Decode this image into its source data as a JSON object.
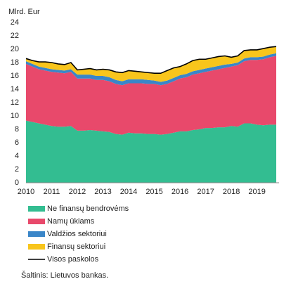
{
  "chart_data": {
    "type": "area",
    "stacked": true,
    "y_label": "Mlrd. Eur",
    "source": "Šaltinis: Lietuvos bankas.",
    "categories": [
      "2010",
      null,
      null,
      null,
      "2011",
      null,
      null,
      null,
      "2012",
      null,
      null,
      null,
      "2013",
      null,
      null,
      null,
      "2014",
      null,
      null,
      null,
      "2015",
      null,
      null,
      null,
      "2016",
      null,
      null,
      null,
      "2017",
      null,
      null,
      null,
      "2018",
      null,
      null,
      null,
      "2019",
      null,
      null,
      null
    ],
    "series": [
      {
        "name": "Ne finansų bendrovėms",
        "color": "#33bd91",
        "values": [
          9.3,
          9.1,
          8.9,
          8.7,
          8.5,
          8.4,
          8.4,
          8.5,
          7.8,
          7.8,
          7.9,
          7.8,
          7.7,
          7.6,
          7.3,
          7.2,
          7.5,
          7.4,
          7.4,
          7.3,
          7.3,
          7.2,
          7.3,
          7.5,
          7.7,
          7.7,
          7.9,
          8.0,
          8.2,
          8.2,
          8.3,
          8.3,
          8.5,
          8.4,
          8.9,
          8.9,
          8.7,
          8.6,
          8.7,
          8.7
        ]
      },
      {
        "name": "Namų ūkiams",
        "color": "#e8496b",
        "values": [
          8.5,
          8.3,
          8.1,
          8.1,
          8.1,
          8.1,
          8.0,
          8.1,
          7.8,
          7.8,
          7.7,
          7.6,
          7.7,
          7.6,
          7.5,
          7.4,
          7.4,
          7.5,
          7.5,
          7.5,
          7.5,
          7.4,
          7.5,
          7.7,
          7.9,
          8.1,
          8.3,
          8.4,
          8.4,
          8.6,
          8.7,
          8.9,
          8.9,
          9.2,
          9.3,
          9.5,
          9.7,
          9.9,
          10.1,
          10.3
        ]
      },
      {
        "name": "Valdžios sektoriui",
        "color": "#3a86c8",
        "values": [
          0.4,
          0.4,
          0.4,
          0.4,
          0.4,
          0.4,
          0.4,
          0.4,
          0.6,
          0.6,
          0.6,
          0.6,
          0.6,
          0.6,
          0.6,
          0.6,
          0.6,
          0.6,
          0.6,
          0.6,
          0.5,
          0.5,
          0.5,
          0.5,
          0.5,
          0.5,
          0.5,
          0.5,
          0.5,
          0.5,
          0.5,
          0.5,
          0.4,
          0.4,
          0.4,
          0.4,
          0.4,
          0.4,
          0.4,
          0.4
        ]
      },
      {
        "name": "Finansų sektoriui",
        "color": "#f8c51c",
        "values": [
          0.4,
          0.5,
          0.7,
          0.9,
          1.0,
          0.9,
          0.9,
          1.0,
          0.7,
          0.8,
          0.9,
          0.9,
          1.0,
          1.1,
          1.2,
          1.3,
          1.3,
          1.2,
          1.1,
          1.1,
          1.1,
          1.3,
          1.5,
          1.5,
          1.3,
          1.5,
          1.6,
          1.6,
          1.4,
          1.4,
          1.4,
          1.3,
          1.0,
          1.0,
          1.2,
          1.1,
          1.1,
          1.2,
          1.1,
          1.0
        ]
      },
      {
        "name": "Visos paskolos",
        "color": "#000000",
        "type": "line",
        "values": [
          18.6,
          18.3,
          18.1,
          18.1,
          18.0,
          17.8,
          17.7,
          18.0,
          16.9,
          17.0,
          17.1,
          16.9,
          17.0,
          16.9,
          16.6,
          16.5,
          16.8,
          16.7,
          16.6,
          16.5,
          16.4,
          16.4,
          16.8,
          17.2,
          17.4,
          17.8,
          18.3,
          18.5,
          18.5,
          18.7,
          18.9,
          19.0,
          18.8,
          19.0,
          19.8,
          19.9,
          19.9,
          20.1,
          20.3,
          20.4
        ]
      }
    ],
    "ylim": [
      0,
      24
    ],
    "yticks": [
      0,
      2,
      4,
      6,
      8,
      10,
      12,
      14,
      16,
      18,
      20,
      22,
      24
    ]
  }
}
